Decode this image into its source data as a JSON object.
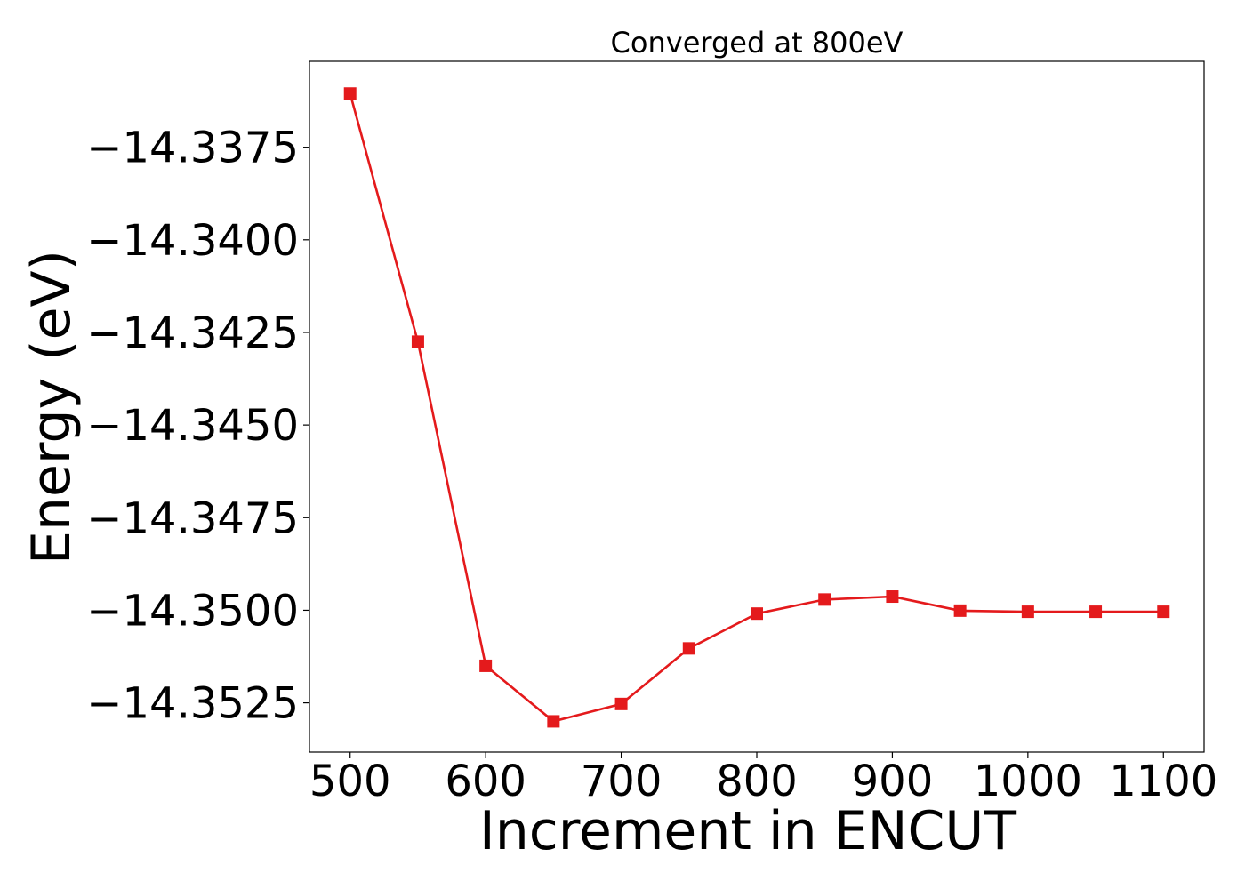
{
  "chart_data": {
    "type": "line",
    "title": "Converged at 800eV",
    "xlabel": "Increment in ENCUT",
    "ylabel": "Energy (eV)",
    "x": [
      500,
      550,
      600,
      650,
      700,
      750,
      800,
      850,
      900,
      950,
      1000,
      1050,
      1100
    ],
    "series": [
      {
        "values": [
          -14.33605,
          -14.34275,
          -14.3515,
          -14.353,
          -14.35253,
          -14.35103,
          -14.35009,
          -14.34971,
          -14.34963,
          -14.35001,
          -14.35004,
          -14.35004,
          -14.35004
        ],
        "color": "#e41a1c",
        "marker": "square"
      }
    ],
    "xticks": [
      500,
      600,
      700,
      800,
      900,
      1000,
      1100
    ],
    "xtick_labels": [
      "500",
      "600",
      "700",
      "800",
      "900",
      "1000",
      "1100"
    ],
    "yticks": [
      -14.3375,
      -14.34,
      -14.3425,
      -14.345,
      -14.3475,
      -14.35,
      -14.3525
    ],
    "ytick_labels": [
      "−14.3375",
      "−14.3400",
      "−14.3425",
      "−14.3450",
      "−14.3475",
      "−14.3500",
      "−14.3525"
    ],
    "xlim": [
      470,
      1130
    ],
    "ylim": [
      -14.35383,
      -14.33518
    ],
    "grid": false,
    "legend": "none"
  }
}
